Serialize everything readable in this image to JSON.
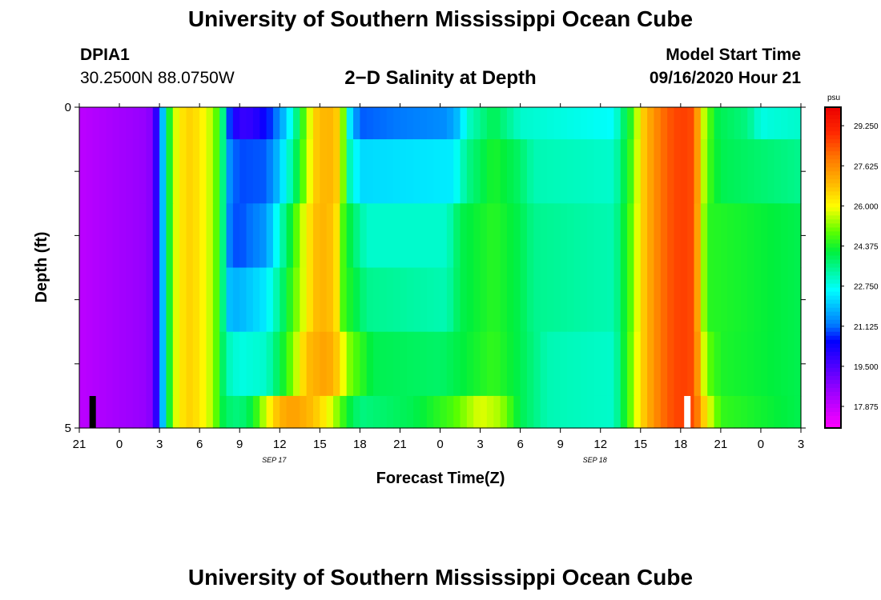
{
  "header": {
    "title_top": "University of Southern Mississippi Ocean Cube",
    "title_bottom": "University of Southern Mississippi Ocean Cube",
    "station": "DPIA1",
    "coords": "30.2500N 88.0750W",
    "subtitle": "2−D Salinity at Depth",
    "model_start_label": "Model Start Time",
    "model_start_value": "09/16/2020 Hour 21"
  },
  "chart_data": {
    "type": "heatmap",
    "title": "2−D Salinity at Depth",
    "xlabel": "Forecast Time(Z)",
    "ylabel": "Depth (ft)",
    "x_hours_range": [
      0,
      54
    ],
    "x_ticks": [
      "21",
      "0",
      "3",
      "6",
      "9",
      "12",
      "15",
      "18",
      "21",
      "0",
      "3",
      "6",
      "9",
      "12",
      "15",
      "18",
      "21",
      "0",
      "3"
    ],
    "date_labels": [
      {
        "hour": 15,
        "text": "SEP 17"
      },
      {
        "hour": 39,
        "text": "SEP 18"
      }
    ],
    "y_tick_labels": [
      {
        "depth": 0,
        "text": "0"
      },
      {
        "depth": 5,
        "text": "5"
      }
    ],
    "y_minor_ticks": [
      1,
      2,
      3,
      4
    ],
    "depth_range": [
      0,
      5
    ],
    "colorbar": {
      "unit": "psu",
      "min": 17.0,
      "max": 30.0,
      "labels": [
        "29.250",
        "27.625",
        "26.000",
        "24.375",
        "22.750",
        "21.125",
        "19.500",
        "17.875"
      ]
    },
    "markers": [
      {
        "hour": 1.0,
        "color": "#000000"
      },
      {
        "hour": 45.5,
        "color": "#ffffff"
      }
    ],
    "layers": [
      {
        "depth": 0,
        "knots": [
          [
            0,
            18.0
          ],
          [
            5.2,
            18.6
          ],
          [
            6.0,
            20.5
          ],
          [
            6.4,
            22.8
          ],
          [
            7.0,
            25.5
          ],
          [
            8.0,
            26.6
          ],
          [
            9.0,
            26.3
          ],
          [
            10.0,
            25.4
          ],
          [
            10.6,
            24.2
          ],
          [
            11.0,
            22.5
          ],
          [
            11.3,
            20.5
          ],
          [
            12.0,
            19.8
          ],
          [
            13.0,
            19.9
          ],
          [
            14.0,
            20.5
          ],
          [
            15.0,
            21.4
          ],
          [
            16.0,
            23.0
          ],
          [
            16.8,
            24.8
          ],
          [
            17.6,
            26.6
          ],
          [
            18.5,
            27.0
          ],
          [
            19.2,
            26.8
          ],
          [
            19.8,
            25.0
          ],
          [
            20.0,
            23.0
          ],
          [
            20.5,
            21.8
          ],
          [
            21.0,
            21.0
          ],
          [
            27.5,
            21.4
          ],
          [
            28.5,
            22.0
          ],
          [
            29.0,
            23.0
          ],
          [
            31.0,
            24.0
          ],
          [
            33.0,
            23.0
          ],
          [
            40.0,
            22.6
          ],
          [
            40.6,
            23.6
          ],
          [
            41.5,
            24.8
          ],
          [
            42.0,
            26.4
          ],
          [
            43.0,
            27.5
          ],
          [
            44.0,
            28.3
          ],
          [
            45.0,
            28.7
          ],
          [
            46.0,
            28.5
          ],
          [
            46.5,
            26.2
          ],
          [
            47.0,
            25.0
          ],
          [
            47.8,
            24.0
          ],
          [
            50.0,
            23.6
          ],
          [
            51.0,
            22.8
          ],
          [
            52.0,
            22.9
          ],
          [
            54,
            23.0
          ]
        ]
      },
      {
        "depth": 1,
        "knots": [
          [
            0,
            18.0
          ],
          [
            5.2,
            18.6
          ],
          [
            6.0,
            20.5
          ],
          [
            6.4,
            22.8
          ],
          [
            7.0,
            25.5
          ],
          [
            8.0,
            26.6
          ],
          [
            9.0,
            26.3
          ],
          [
            10.0,
            25.4
          ],
          [
            10.6,
            24.2
          ],
          [
            11.0,
            22.5
          ],
          [
            11.3,
            21.2
          ],
          [
            12.0,
            20.9
          ],
          [
            14.0,
            21.0
          ],
          [
            15.0,
            22.0
          ],
          [
            16.0,
            23.5
          ],
          [
            16.8,
            25.0
          ],
          [
            17.6,
            26.6
          ],
          [
            18.5,
            27.0
          ],
          [
            19.2,
            26.8
          ],
          [
            19.8,
            25.0
          ],
          [
            20.0,
            23.5
          ],
          [
            21.0,
            22.2
          ],
          [
            28.0,
            22.4
          ],
          [
            29.0,
            23.5
          ],
          [
            31.0,
            24.4
          ],
          [
            33.0,
            23.8
          ],
          [
            34.0,
            23.2
          ],
          [
            40.0,
            23.0
          ],
          [
            40.6,
            23.8
          ],
          [
            41.5,
            25.0
          ],
          [
            42.0,
            26.4
          ],
          [
            43.0,
            27.5
          ],
          [
            44.0,
            28.3
          ],
          [
            45.0,
            28.7
          ],
          [
            46.0,
            28.5
          ],
          [
            46.5,
            26.2
          ],
          [
            47.0,
            24.8
          ],
          [
            48.0,
            24.0
          ],
          [
            54,
            23.5
          ]
        ]
      },
      {
        "depth": 2,
        "knots": [
          [
            0,
            18.0
          ],
          [
            5.2,
            18.6
          ],
          [
            6.0,
            20.5
          ],
          [
            6.4,
            22.8
          ],
          [
            7.0,
            25.5
          ],
          [
            8.0,
            26.6
          ],
          [
            9.0,
            26.3
          ],
          [
            10.0,
            25.4
          ],
          [
            10.6,
            24.2
          ],
          [
            11.0,
            22.5
          ],
          [
            11.3,
            21.0
          ],
          [
            12.0,
            20.9
          ],
          [
            14.0,
            21.5
          ],
          [
            15.0,
            23.0
          ],
          [
            16.0,
            24.5
          ],
          [
            16.8,
            25.8
          ],
          [
            17.6,
            26.8
          ],
          [
            18.5,
            27.0
          ],
          [
            19.2,
            26.5
          ],
          [
            19.8,
            24.6
          ],
          [
            20.5,
            23.8
          ],
          [
            21.5,
            23.0
          ],
          [
            27.5,
            23.0
          ],
          [
            28.5,
            24.0
          ],
          [
            31.0,
            24.5
          ],
          [
            33.0,
            24.0
          ],
          [
            34.0,
            23.5
          ],
          [
            40.0,
            23.2
          ],
          [
            40.6,
            24.0
          ],
          [
            41.5,
            25.2
          ],
          [
            42.0,
            26.4
          ],
          [
            43.0,
            27.5
          ],
          [
            44.0,
            28.3
          ],
          [
            45.0,
            28.7
          ],
          [
            46.0,
            28.5
          ],
          [
            46.5,
            26.0
          ],
          [
            47.0,
            24.5
          ],
          [
            54,
            24.0
          ]
        ]
      },
      {
        "depth": 3,
        "knots": [
          [
            0,
            18.0
          ],
          [
            5.2,
            18.6
          ],
          [
            6.0,
            20.5
          ],
          [
            6.4,
            22.8
          ],
          [
            7.0,
            25.5
          ],
          [
            8.0,
            26.6
          ],
          [
            9.0,
            26.3
          ],
          [
            10.0,
            25.4
          ],
          [
            10.6,
            24.2
          ],
          [
            11.0,
            22.5
          ],
          [
            11.3,
            21.8
          ],
          [
            12.0,
            21.8
          ],
          [
            14.0,
            22.4
          ],
          [
            15.0,
            23.5
          ],
          [
            16.0,
            24.8
          ],
          [
            16.8,
            25.8
          ],
          [
            17.6,
            26.8
          ],
          [
            18.5,
            27.0
          ],
          [
            19.2,
            26.5
          ],
          [
            19.8,
            24.6
          ],
          [
            20.5,
            24.2
          ],
          [
            21.5,
            23.5
          ],
          [
            27.5,
            23.2
          ],
          [
            28.5,
            24.0
          ],
          [
            31.0,
            24.5
          ],
          [
            33.0,
            24.0
          ],
          [
            34.0,
            23.5
          ],
          [
            40.0,
            23.2
          ],
          [
            40.6,
            24.0
          ],
          [
            41.5,
            25.2
          ],
          [
            42.0,
            26.4
          ],
          [
            43.0,
            27.5
          ],
          [
            44.0,
            28.3
          ],
          [
            45.0,
            28.7
          ],
          [
            46.0,
            28.5
          ],
          [
            46.5,
            26.0
          ],
          [
            47.0,
            24.5
          ],
          [
            54,
            24.0
          ]
        ]
      },
      {
        "depth": 4,
        "knots": [
          [
            0,
            18.0
          ],
          [
            5.2,
            18.6
          ],
          [
            6.0,
            20.5
          ],
          [
            6.4,
            22.8
          ],
          [
            7.0,
            25.5
          ],
          [
            8.0,
            26.6
          ],
          [
            9.0,
            26.3
          ],
          [
            10.0,
            25.4
          ],
          [
            10.6,
            24.2
          ],
          [
            11.0,
            23.2
          ],
          [
            12.0,
            22.8
          ],
          [
            14.0,
            23.0
          ],
          [
            15.0,
            24.0
          ],
          [
            16.0,
            25.2
          ],
          [
            17.0,
            26.8
          ],
          [
            18.5,
            27.3
          ],
          [
            19.5,
            26.5
          ],
          [
            20.0,
            25.3
          ],
          [
            21.0,
            24.6
          ],
          [
            22.0,
            24.0
          ],
          [
            27.0,
            23.8
          ],
          [
            29.0,
            24.2
          ],
          [
            31.0,
            24.6
          ],
          [
            33.0,
            24.0
          ],
          [
            35.0,
            23.2
          ],
          [
            40.0,
            23.0
          ],
          [
            40.6,
            24.0
          ],
          [
            41.5,
            25.4
          ],
          [
            42.0,
            26.4
          ],
          [
            43.0,
            27.5
          ],
          [
            44.0,
            28.3
          ],
          [
            45.0,
            28.7
          ],
          [
            46.0,
            28.5
          ],
          [
            46.5,
            26.4
          ],
          [
            47.0,
            25.0
          ],
          [
            48.0,
            24.4
          ],
          [
            54,
            24.0
          ]
        ]
      },
      {
        "depth": 5,
        "knots": [
          [
            0,
            18.0
          ],
          [
            5.2,
            18.6
          ],
          [
            6.0,
            20.5
          ],
          [
            6.4,
            22.8
          ],
          [
            7.0,
            25.5
          ],
          [
            8.0,
            26.6
          ],
          [
            9.0,
            26.3
          ],
          [
            10.0,
            25.4
          ],
          [
            10.6,
            24.2
          ],
          [
            11.0,
            23.8
          ],
          [
            12.0,
            23.6
          ],
          [
            13.0,
            24.2
          ],
          [
            14.0,
            25.8
          ],
          [
            15.0,
            27.0
          ],
          [
            16.0,
            27.3
          ],
          [
            17.0,
            27.0
          ],
          [
            18.0,
            26.5
          ],
          [
            19.0,
            25.6
          ],
          [
            20.0,
            24.3
          ],
          [
            21.0,
            23.6
          ],
          [
            25.0,
            24.0
          ],
          [
            28.0,
            24.8
          ],
          [
            30.0,
            25.8
          ],
          [
            31.5,
            25.4
          ],
          [
            33.0,
            24.0
          ],
          [
            35.0,
            23.2
          ],
          [
            40.0,
            23.0
          ],
          [
            40.6,
            24.0
          ],
          [
            41.5,
            25.4
          ],
          [
            42.0,
            26.4
          ],
          [
            43.0,
            27.5
          ],
          [
            44.0,
            28.3
          ],
          [
            45.0,
            28.7
          ],
          [
            46.0,
            28.5
          ],
          [
            46.5,
            27.2
          ],
          [
            47.0,
            26.0
          ],
          [
            48.0,
            24.6
          ],
          [
            54,
            24.0
          ]
        ]
      }
    ]
  }
}
